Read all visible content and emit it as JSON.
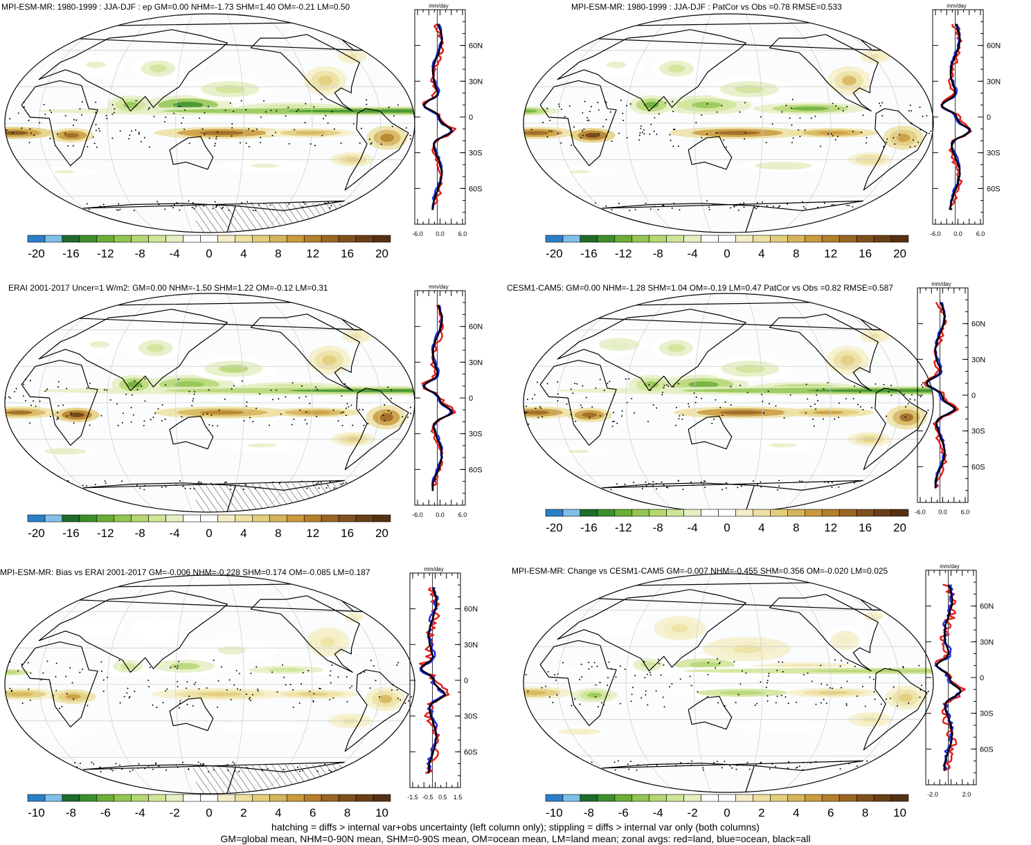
{
  "units": "mm/day",
  "panels": [
    {
      "id": "p1",
      "title": "MPI-ESM-MR: 1980-1999 : JJA-DJF : ep GM=0.00 NHM=-1.73 SHM=1.40 OM=-0.21 LM=0.50",
      "hatching": true,
      "seed": 11,
      "lat_ticks": [
        "60N",
        "30N",
        "0",
        "30S",
        "60S"
      ],
      "x_ticks": [
        "-6.0",
        "0.0",
        "6.0"
      ],
      "colorbar_labels": [
        "-20",
        "-16",
        "-12",
        "-8",
        "-4",
        "0",
        "4",
        "8",
        "12",
        "16",
        "20"
      ]
    },
    {
      "id": "p2",
      "title": "MPI-ESM-MR: 1980-1999 : JJA-DJF : PatCor vs Obs =0.78 RMSE=0.533",
      "hatching": false,
      "seed": 23,
      "lat_ticks": [
        "60N",
        "30N",
        "0",
        "30S",
        "60S"
      ],
      "x_ticks": [
        "-6.0",
        "0.0",
        "6.0"
      ],
      "colorbar_labels": [
        "-20",
        "-16",
        "-12",
        "-8",
        "-4",
        "0",
        "4",
        "8",
        "12",
        "16",
        "20"
      ]
    },
    {
      "id": "p3",
      "title": "ERAI 2001-2017 Uncer=1 W/m2: GM=0.00 NHM=-1.50 SHM=1.22 OM=-0.12 LM=0.31",
      "hatching": true,
      "seed": 37,
      "lat_ticks": [
        "60N",
        "30N",
        "0",
        "30S",
        "60S"
      ],
      "x_ticks": [
        "-6.0",
        "0.0",
        "6.0"
      ],
      "colorbar_labels": [
        "-20",
        "-16",
        "-12",
        "-8",
        "-4",
        "0",
        "4",
        "8",
        "12",
        "16",
        "20"
      ]
    },
    {
      "id": "p4",
      "title": "CESM1-CAM5: GM=0.00 NHM=-1.28 SHM=1.04 OM=-0.19 LM=0.47 PatCor vs Obs =0.82 RMSE=0.587",
      "hatching": false,
      "seed": 41,
      "lat_ticks": [
        "60N",
        "30N",
        "0",
        "30S",
        "60S"
      ],
      "x_ticks": [
        "-6.0",
        "0.0",
        "6.0"
      ],
      "colorbar_labels": [
        "-20",
        "-16",
        "-12",
        "-8",
        "-4",
        "0",
        "4",
        "8",
        "12",
        "16",
        "20"
      ]
    },
    {
      "id": "p5",
      "title": "MPI-ESM-MR: Bias vs ERAI 2001-2017 GM=-0.006 NHM=-0.228 SHM=0.174 OM=-0.085 LM=0.187",
      "hatching": true,
      "seed": 53,
      "lat_ticks": [
        "60N",
        "30N",
        "0",
        "30S",
        "60S"
      ],
      "x_ticks": [
        "-1.5",
        "-0.5",
        "0.5",
        "1.5"
      ],
      "colorbar_labels": [
        "-10",
        "-8",
        "-6",
        "-4",
        "-2",
        "0",
        "2",
        "4",
        "6",
        "8",
        "10"
      ]
    },
    {
      "id": "p6",
      "title": "MPI-ESM-MR: Change vs CESM1-CAM5 GM=-0.007 NHM=-0.455 SHM=0.356 OM=-0.020 LM=0.025",
      "hatching": false,
      "seed": 67,
      "lat_ticks": [
        "60N",
        "30N",
        "0",
        "30S",
        "60S"
      ],
      "x_ticks": [
        "-2.0",
        "2.0"
      ],
      "colorbar_labels": [
        "-10",
        "-8",
        "-6",
        "-4",
        "-2",
        "0",
        "2",
        "4",
        "6",
        "8",
        "10"
      ]
    }
  ],
  "colorbar_colors": [
    "#2a7fc8",
    "#7fbfe8",
    "#1f6b2a",
    "#3d8f2d",
    "#6aae38",
    "#93c553",
    "#b5d672",
    "#cfe497",
    "#e4efc3",
    "#ffffff",
    "#ffffff",
    "#f4eec8",
    "#ece0a2",
    "#e2cd7d",
    "#d6b45a",
    "#c99a3d",
    "#b57f2c",
    "#9a6623",
    "#80501c",
    "#6a3f17",
    "#553113"
  ],
  "footer": [
    "hatching = diffs > internal var+obs uncertainty (left column only); stippling = diffs > internal var only (both columns)",
    "GM=global mean, NHM=0-90N mean, SHM=0-90S mean, OM=ocean mean, LM=land mean; zonal avgs: red=land, blue=ocean, black=all"
  ]
}
